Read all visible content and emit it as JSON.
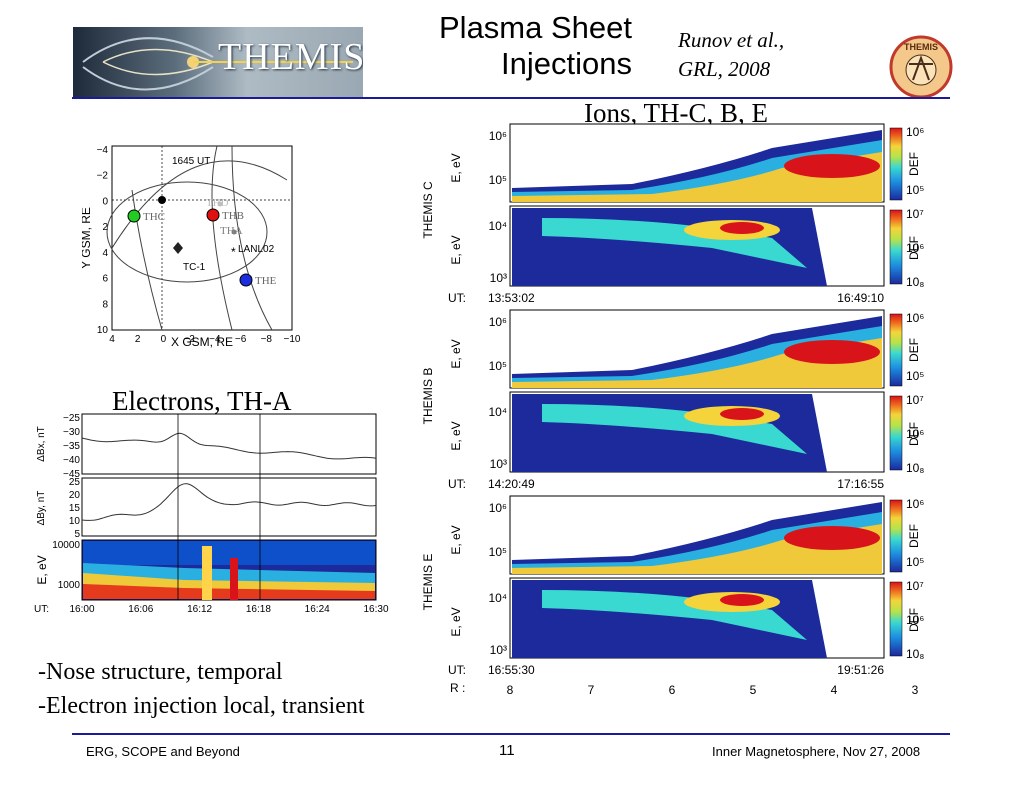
{
  "slide": {
    "title_line1": "Plasma Sheet",
    "title_line2": "Injections",
    "citation_line1": "Runov et al.,",
    "citation_line2": "GRL, 2008",
    "banner_text": "THEMIS",
    "logo_text": "THEMIS",
    "ions_heading": "Ions, TH-C, B, E",
    "electrons_heading": "Electrons, TH-A",
    "bullets": [
      "-Nose structure, temporal",
      "-Electron injection local, transient"
    ],
    "footer_left": "ERG, SCOPE and Beyond",
    "footer_center": "11",
    "footer_right": "Inner Magnetosphere, Nov 27, 2008"
  },
  "orbit_plot": {
    "time_label": "1645 UT",
    "xlabel": "X GSM, RE",
    "ylabel": "Y GSM, RE",
    "xticks": [
      "4",
      "2",
      "0",
      "−2",
      "−4",
      "−6",
      "−8",
      "−10"
    ],
    "yticks": [
      "−4",
      "−2",
      "0",
      "2",
      "4",
      "6",
      "8",
      "10"
    ],
    "spacecraft": [
      {
        "name": "THD",
        "color": "#bdbdbd"
      },
      {
        "name": "THB",
        "color": "#e01010"
      },
      {
        "name": "THA",
        "color": "#808080"
      },
      {
        "name": "THC",
        "color": "#22cc22"
      },
      {
        "name": "THE",
        "color": "#1a2ee0"
      }
    ],
    "other_labels": [
      "TC-1",
      "LANL02"
    ]
  },
  "electrons_panel": {
    "bx_label": "ΔBx, nT",
    "bx_ticks": [
      "−25",
      "−30",
      "−35",
      "−40",
      "−45"
    ],
    "by_label": "ΔBy, nT",
    "by_ticks": [
      "25",
      "20",
      "15",
      "10",
      "5"
    ],
    "e_label": "E, eV",
    "e_ticks": [
      "10000",
      "1000"
    ],
    "ut_label": "UT:",
    "ut_ticks": [
      "16:00",
      "16:06",
      "16:12",
      "16:18",
      "16:24",
      "16:30"
    ]
  },
  "ion_panels": [
    {
      "spacecraft": "THEMIS C",
      "ut_label": "UT:",
      "ut_start": "13:53:02",
      "ut_end": "16:49:10"
    },
    {
      "spacecraft": "THEMIS B",
      "ut_label": "UT:",
      "ut_start": "14:20:49",
      "ut_end": "17:16:55"
    },
    {
      "spacecraft": "THEMIS E",
      "ut_label": "UT:",
      "ut_start": "16:55:30",
      "ut_end": "19:51:26"
    }
  ],
  "spectrogram_labels": {
    "energy_label": "E, eV",
    "ion_upper_ticks": [
      "10⁶",
      "10⁵"
    ],
    "ion_lower_ticks": [
      "10⁴",
      "10³"
    ],
    "def_label": "DEF",
    "cb_upper": [
      "10⁶",
      "10⁵"
    ],
    "cb_lower": [
      "10⁷",
      "10⁶",
      "10₈"
    ]
  },
  "radius_axis": {
    "label": "R :",
    "values": [
      "8",
      "7",
      "6",
      "5",
      "4",
      "3"
    ]
  },
  "colors": {
    "rule": "#1b1b9a",
    "jet_red": "#d8141a",
    "jet_blue": "#1c2a9c"
  }
}
